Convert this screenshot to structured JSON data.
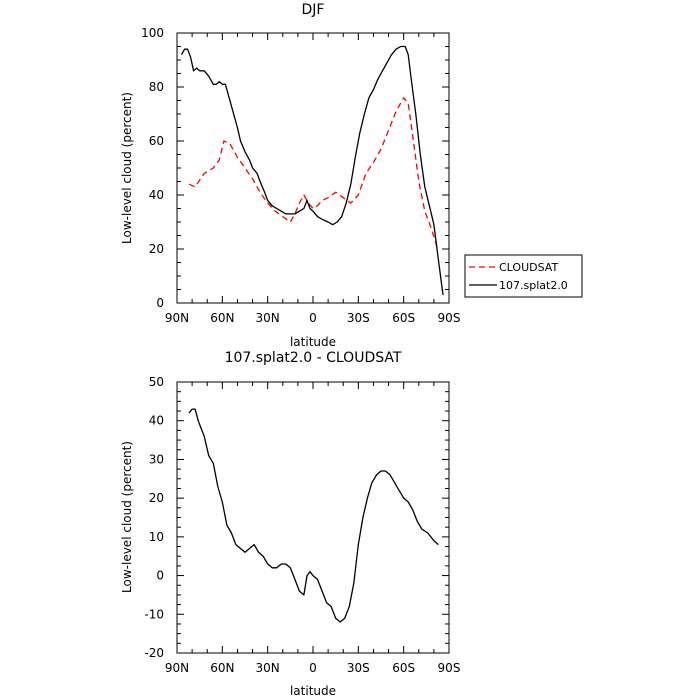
{
  "chart_data": [
    {
      "type": "line",
      "title": "DJF",
      "xlabel": "latitude",
      "ylabel": "Low-level cloud (percent)",
      "xlim": [
        90,
        -90
      ],
      "ylim": [
        0,
        100
      ],
      "x_tick_values": [
        90,
        60,
        30,
        0,
        -30,
        -60,
        -90
      ],
      "x_tick_labels": [
        "90N",
        "60N",
        "30N",
        "0",
        "30S",
        "60S",
        "90S"
      ],
      "y_tick_labels": [
        "0",
        "20",
        "40",
        "60",
        "80",
        "100"
      ],
      "y_tick_values": [
        0,
        20,
        40,
        60,
        80,
        100
      ],
      "legend_position": "right",
      "series": [
        {
          "name": "CLOUDSAT",
          "color": "#ff0000",
          "dash": "dashed",
          "x": [
            82,
            78,
            72,
            66,
            62,
            59,
            55,
            50,
            45,
            40,
            35,
            30,
            25,
            20,
            15,
            12,
            9,
            6,
            3,
            0,
            -3,
            -6,
            -10,
            -15,
            -20,
            -25,
            -30,
            -35,
            -40,
            -45,
            -50,
            -55,
            -60,
            -63,
            -66,
            -70,
            -74,
            -78,
            -82
          ],
          "y": [
            44,
            43,
            48,
            50,
            53,
            60,
            59,
            54,
            50,
            46,
            41,
            37,
            34,
            32,
            30,
            33,
            37,
            40,
            37,
            35,
            36,
            38,
            39,
            41,
            39,
            37,
            40,
            48,
            52,
            57,
            64,
            71,
            76,
            74,
            62,
            45,
            34,
            28,
            21
          ]
        },
        {
          "name": "107.splat2.0",
          "color": "#000000",
          "dash": "solid",
          "x": [
            87,
            85,
            83,
            81,
            79,
            77,
            75,
            72,
            69,
            66,
            64,
            62,
            60,
            58,
            56,
            54,
            52,
            50,
            48,
            45,
            42,
            40,
            37,
            35,
            32,
            30,
            27,
            24,
            21,
            18,
            15,
            12,
            9,
            6,
            4,
            2,
            0,
            -3,
            -6,
            -10,
            -13,
            -16,
            -19,
            -22,
            -25,
            -28,
            -31,
            -34,
            -37,
            -40,
            -43,
            -46,
            -49,
            -52,
            -55,
            -58,
            -61,
            -63,
            -65,
            -68,
            -71,
            -74,
            -77,
            -80,
            -83,
            -86
          ],
          "y": [
            92,
            94,
            94,
            91,
            86,
            87,
            86,
            86,
            84,
            81,
            81,
            82,
            81,
            81,
            77,
            73,
            69,
            65,
            60,
            56,
            53,
            50,
            48,
            45,
            41,
            38,
            36,
            35,
            34,
            33,
            33,
            33,
            34,
            35,
            38,
            35,
            34,
            32,
            31,
            30,
            29,
            30,
            32,
            37,
            44,
            54,
            63,
            70,
            76,
            79,
            83,
            86,
            89,
            92,
            94,
            95,
            95,
            92,
            83,
            70,
            55,
            43,
            36,
            29,
            16,
            3
          ]
        }
      ]
    },
    {
      "type": "line",
      "title": "107.splat2.0 - CLOUDSAT",
      "xlabel": "latitude",
      "ylabel": "Low-level cloud (percent)",
      "xlim": [
        90,
        -90
      ],
      "ylim": [
        -20,
        50
      ],
      "x_tick_values": [
        90,
        60,
        30,
        0,
        -30,
        -60,
        -90
      ],
      "x_tick_labels": [
        "90N",
        "60N",
        "30N",
        "0",
        "30S",
        "60S",
        "90S"
      ],
      "y_tick_labels": [
        "-20",
        "-10",
        "0",
        "10",
        "20",
        "30",
        "40",
        "50"
      ],
      "y_tick_values": [
        -20,
        -10,
        0,
        10,
        20,
        30,
        40,
        50
      ],
      "series": [
        {
          "name": "",
          "color": "#000000",
          "dash": "solid",
          "x": [
            82,
            80,
            78,
            76,
            74,
            72,
            69,
            66,
            63,
            60,
            57,
            54,
            51,
            48,
            45,
            42,
            39,
            36,
            33,
            30,
            27,
            24,
            21,
            18,
            15,
            12,
            9,
            6,
            4,
            2,
            0,
            -3,
            -6,
            -9,
            -12,
            -15,
            -18,
            -21,
            -24,
            -27,
            -30,
            -33,
            -36,
            -39,
            -42,
            -45,
            -48,
            -51,
            -54,
            -57,
            -60,
            -63,
            -66,
            -69,
            -72,
            -76,
            -80,
            -83
          ],
          "y": [
            42,
            43,
            43,
            40,
            38,
            36,
            31,
            29,
            23,
            19,
            13,
            11,
            8,
            7,
            6,
            7,
            8,
            6,
            5,
            3,
            2,
            2,
            3,
            3,
            2,
            -1,
            -4,
            -5,
            0,
            1,
            0,
            -1,
            -4,
            -7,
            -8,
            -11,
            -12,
            -11,
            -8,
            -2,
            8,
            15,
            20,
            24,
            26,
            27,
            27,
            26,
            24,
            22,
            20,
            19,
            17,
            14,
            12,
            11,
            9,
            8
          ]
        }
      ]
    }
  ]
}
